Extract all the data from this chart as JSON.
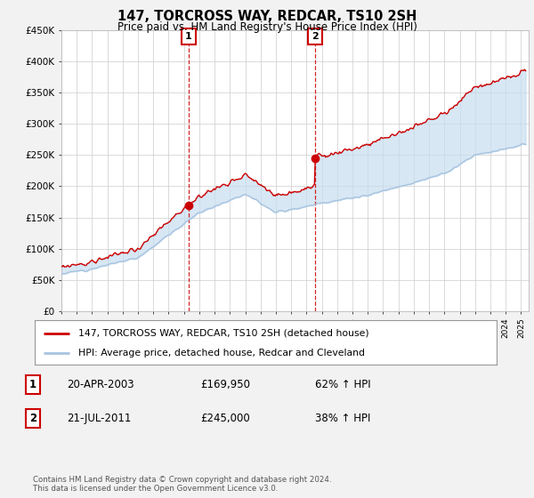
{
  "title": "147, TORCROSS WAY, REDCAR, TS10 2SH",
  "subtitle": "Price paid vs. HM Land Registry's House Price Index (HPI)",
  "ylim": [
    0,
    450000
  ],
  "yticks": [
    0,
    50000,
    100000,
    150000,
    200000,
    250000,
    300000,
    350000,
    400000,
    450000
  ],
  "ytick_labels": [
    "£0",
    "£50K",
    "£100K",
    "£150K",
    "£200K",
    "£250K",
    "£300K",
    "£350K",
    "£400K",
    "£450K"
  ],
  "xlim_start": 1995.0,
  "xlim_end": 2025.5,
  "hpi_color": "#a8c4e0",
  "price_color": "#cc0000",
  "fill_color": "#c8ddf0",
  "marker1_date": 2003.3,
  "marker1_price": 169950,
  "marker2_date": 2011.55,
  "marker2_price": 245000,
  "legend_line1": "147, TORCROSS WAY, REDCAR, TS10 2SH (detached house)",
  "legend_line2": "HPI: Average price, detached house, Redcar and Cleveland",
  "footnote": "Contains HM Land Registry data © Crown copyright and database right 2024.\nThis data is licensed under the Open Government Licence v3.0.",
  "plot_bg_color": "#ffffff",
  "fig_bg_color": "#f2f2f2",
  "vline_color": "#cc0000",
  "grid_color": "#cccccc",
  "n_points": 500,
  "hpi_seed": 12,
  "price_seed": 99
}
